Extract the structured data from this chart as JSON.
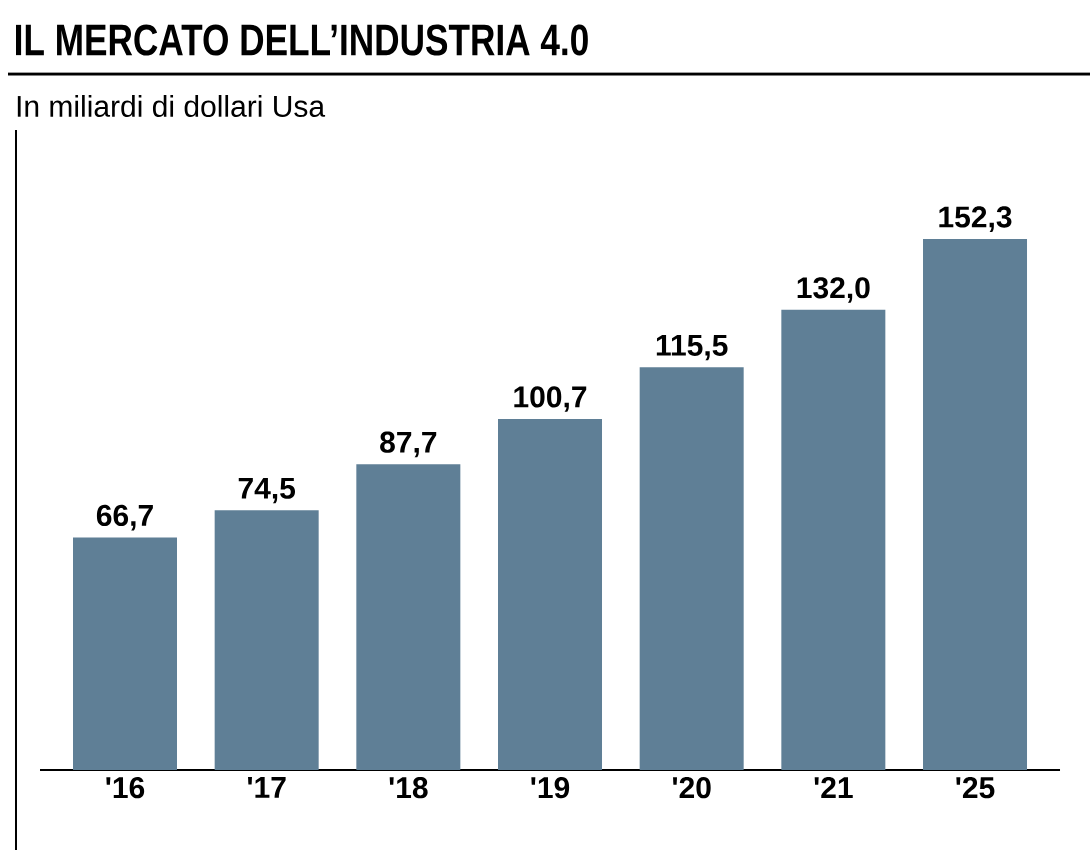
{
  "chart_data": {
    "type": "bar",
    "title": "IL MERCATO DELL’INDUSTRIA 4.0",
    "subtitle": "In miliardi di dollari Usa",
    "categories": [
      "'16",
      "'17",
      "'18",
      "'19",
      "'20",
      "'21",
      "'25"
    ],
    "values": [
      66.7,
      74.5,
      87.7,
      100.7,
      115.5,
      132.0,
      152.3
    ],
    "value_labels": [
      "66,7",
      "74,5",
      "87,7",
      "100,7",
      "115,5",
      "132,0",
      "152,3"
    ],
    "color": "#5f7f96"
  }
}
